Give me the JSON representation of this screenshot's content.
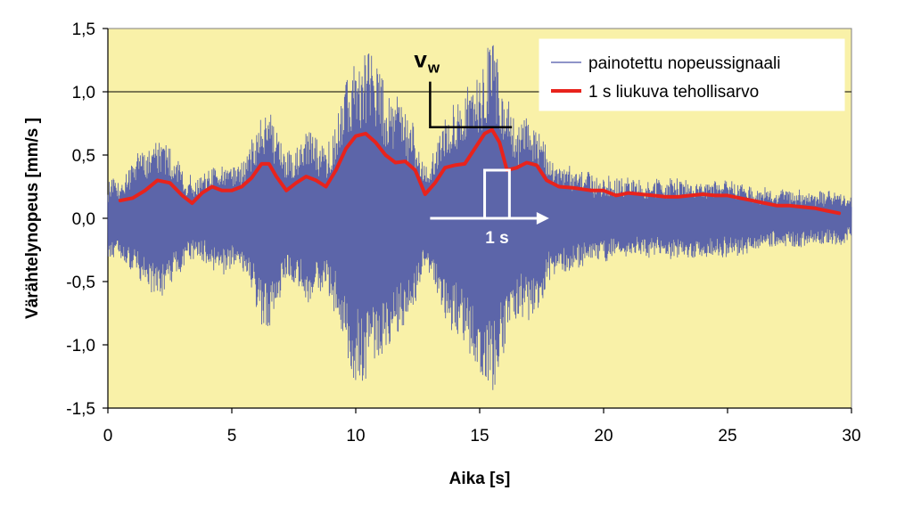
{
  "chart_data": {
    "type": "line",
    "xlabel": "Aika [s]",
    "ylabel": "Värähtelynopeus [mm/s ]",
    "xlim": [
      0,
      30
    ],
    "ylim": [
      -1.5,
      1.5
    ],
    "x_ticks": [
      "0",
      "5",
      "10",
      "15",
      "20",
      "25",
      "30"
    ],
    "y_ticks": [
      "-1,5",
      "-1,0",
      "-0,5",
      "0,0",
      "0,5",
      "1,0",
      "1,5"
    ],
    "grid": "horizontal",
    "gridlines_y": [
      1.0
    ],
    "legend_position": "top-right",
    "colors": {
      "plot_background": "#f9f1a8",
      "signal": "#4a55a8",
      "rms": "#e8231c",
      "grid": "#000000",
      "window_marker": "#ffffff"
    },
    "series": [
      {
        "name": "painotettu nopeussignaali",
        "style": "thin-line",
        "color": "#4a55a8",
        "description_points": "oscillating vibration signal; envelope given as [time_s, amplitude_mm_s]",
        "envelope": [
          [
            0,
            0.28
          ],
          [
            0.5,
            0.3
          ],
          [
            1.0,
            0.45
          ],
          [
            1.5,
            0.55
          ],
          [
            2.0,
            0.65
          ],
          [
            2.5,
            0.55
          ],
          [
            3.0,
            0.4
          ],
          [
            3.5,
            0.3
          ],
          [
            4.0,
            0.35
          ],
          [
            4.5,
            0.45
          ],
          [
            5.0,
            0.4
          ],
          [
            5.5,
            0.45
          ],
          [
            6.0,
            0.75
          ],
          [
            6.4,
            0.95
          ],
          [
            6.8,
            0.7
          ],
          [
            7.2,
            0.5
          ],
          [
            7.6,
            0.55
          ],
          [
            8.0,
            0.7
          ],
          [
            8.4,
            0.65
          ],
          [
            8.8,
            0.55
          ],
          [
            9.2,
            0.8
          ],
          [
            9.6,
            1.1
          ],
          [
            10.0,
            1.3
          ],
          [
            10.4,
            1.35
          ],
          [
            10.8,
            1.25
          ],
          [
            11.2,
            1.05
          ],
          [
            11.6,
            1.0
          ],
          [
            12.0,
            0.85
          ],
          [
            12.4,
            0.7
          ],
          [
            12.8,
            0.4
          ],
          [
            13.2,
            0.55
          ],
          [
            13.6,
            0.85
          ],
          [
            14.0,
            0.95
          ],
          [
            14.4,
            1.0
          ],
          [
            14.8,
            1.15
          ],
          [
            15.2,
            1.3
          ],
          [
            15.5,
            1.45
          ],
          [
            15.8,
            1.2
          ],
          [
            16.2,
            0.9
          ],
          [
            16.6,
            0.75
          ],
          [
            17.0,
            0.85
          ],
          [
            17.4,
            0.7
          ],
          [
            17.8,
            0.5
          ],
          [
            18.5,
            0.4
          ],
          [
            19.5,
            0.35
          ],
          [
            20.5,
            0.3
          ],
          [
            21.5,
            0.3
          ],
          [
            22.5,
            0.3
          ],
          [
            23.5,
            0.3
          ],
          [
            24.5,
            0.3
          ],
          [
            25.5,
            0.28
          ],
          [
            26.5,
            0.22
          ],
          [
            27.5,
            0.22
          ],
          [
            28.5,
            0.2
          ],
          [
            29.5,
            0.2
          ],
          [
            30.0,
            0.15
          ]
        ]
      },
      {
        "name": "1 s liukuva tehollisarvo",
        "style": "thick-line",
        "color": "#e8231c",
        "x": [
          0.5,
          1.0,
          1.5,
          2.0,
          2.5,
          3.0,
          3.4,
          3.8,
          4.2,
          4.6,
          5.0,
          5.4,
          5.8,
          6.2,
          6.5,
          6.8,
          7.2,
          7.6,
          8.0,
          8.4,
          8.8,
          9.2,
          9.6,
          10.0,
          10.4,
          10.8,
          11.2,
          11.6,
          12.0,
          12.4,
          12.8,
          13.2,
          13.6,
          14.0,
          14.4,
          14.8,
          15.2,
          15.5,
          15.8,
          16.1,
          16.5,
          16.9,
          17.3,
          17.7,
          18.2,
          18.8,
          19.5,
          20.0,
          20.5,
          21.0,
          21.5,
          22.0,
          22.5,
          23.0,
          23.5,
          24.0,
          24.5,
          25.0,
          25.5,
          26.0,
          26.5,
          27.0,
          27.5,
          28.0,
          28.5,
          29.0,
          29.5
        ],
        "y": [
          0.14,
          0.16,
          0.22,
          0.3,
          0.28,
          0.18,
          0.12,
          0.2,
          0.25,
          0.22,
          0.22,
          0.25,
          0.32,
          0.43,
          0.43,
          0.33,
          0.22,
          0.28,
          0.33,
          0.3,
          0.25,
          0.38,
          0.55,
          0.65,
          0.67,
          0.6,
          0.5,
          0.44,
          0.45,
          0.38,
          0.19,
          0.28,
          0.4,
          0.42,
          0.43,
          0.55,
          0.67,
          0.7,
          0.6,
          0.38,
          0.4,
          0.44,
          0.42,
          0.3,
          0.25,
          0.24,
          0.22,
          0.22,
          0.18,
          0.2,
          0.19,
          0.18,
          0.17,
          0.17,
          0.18,
          0.19,
          0.18,
          0.18,
          0.16,
          0.14,
          0.12,
          0.1,
          0.1,
          0.09,
          0.08,
          0.06,
          0.04
        ]
      }
    ],
    "annotations": [
      {
        "id": "vw",
        "label": "v",
        "subscript": "w",
        "peak": [
          15.5,
          0.72
        ],
        "elbow": [
          13.0,
          1.08
        ],
        "line_end": [
          16.3,
          0.72
        ]
      },
      {
        "id": "window",
        "label": "1 s",
        "start": 13.0,
        "end": 17.8,
        "y": 0.0,
        "pulse": [
          15.2,
          16.2
        ],
        "pulse_top": 0.38
      }
    ]
  }
}
